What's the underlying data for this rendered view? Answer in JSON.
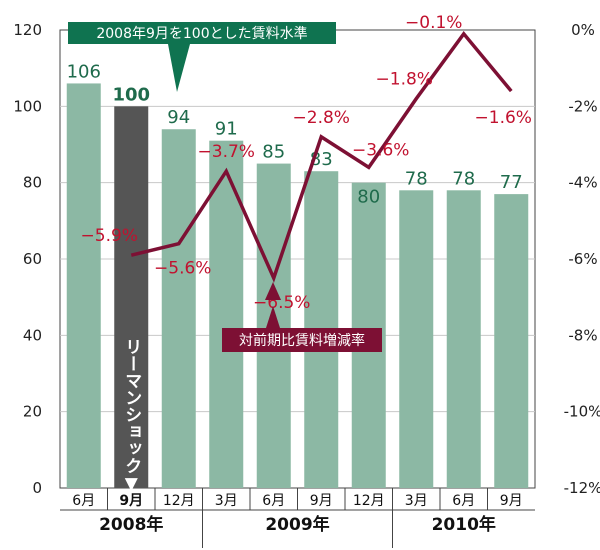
{
  "chart_data": {
    "type": "bar+line",
    "categories": [
      "6月",
      "9月",
      "12月",
      "3月",
      "6月",
      "9月",
      "12月",
      "3月",
      "6月",
      "9月"
    ],
    "years": [
      {
        "label": "2008年",
        "span": [
          0,
          2
        ]
      },
      {
        "label": "2009年",
        "span": [
          3,
          6
        ]
      },
      {
        "label": "2010年",
        "span": [
          7,
          9
        ]
      }
    ],
    "bar_series": {
      "name": "2008年9月を100とした賃料水準",
      "values": [
        106,
        100,
        94,
        91,
        85,
        83,
        80,
        78,
        78,
        77
      ],
      "labels": [
        "106",
        "100",
        "94",
        "91",
        "85",
        "83",
        "80",
        "78",
        "78",
        "77"
      ],
      "highlight_index": 1
    },
    "line_series": {
      "name": "対前期比賃料増減率",
      "values": [
        -5.9,
        -5.6,
        -3.7,
        -6.5,
        -2.8,
        -3.6,
        -1.8,
        -0.1,
        -1.6
      ],
      "labels": [
        "−5.9%",
        "−5.6%",
        "−3.7%",
        "−6.5%",
        "−2.8%",
        "−3.6%",
        "−1.8%",
        "−0.1%",
        "−1.6%"
      ]
    },
    "ylim_left": [
      0,
      120
    ],
    "yticks_left": [
      "0",
      "20",
      "40",
      "60",
      "80",
      "100",
      "120"
    ],
    "ylim_right": [
      -12,
      0
    ],
    "yticks_right": [
      "-12%",
      "-10%",
      "-8%",
      "-6%",
      "-4%",
      "-2%",
      "0%"
    ],
    "annotation": "リーマンショック▼",
    "colors": {
      "bar": "#8cb8a4",
      "bar_highlight": "#555555",
      "bar_label": "#1f6b4c",
      "line": "#7d1034",
      "line_label": "#c1122f",
      "bar_callout_bg": "#0f7350",
      "line_callout_bg": "#7d1034"
    }
  }
}
